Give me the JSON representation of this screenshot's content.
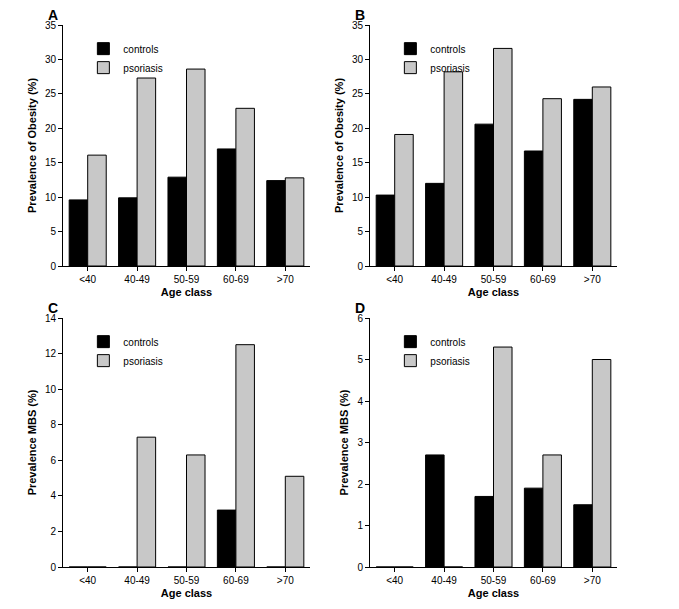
{
  "chart_data": [
    {
      "type": "bar",
      "title": "A",
      "x_label": "Age class",
      "y_label": "Prevalence of Obesity (%)",
      "categories": [
        "<40",
        "40-49",
        "50-59",
        "60-69",
        ">70"
      ],
      "series": [
        {
          "name": "controls",
          "color": "#000000",
          "values": [
            9.6,
            9.9,
            12.9,
            17.0,
            12.4
          ]
        },
        {
          "name": "psoriasis",
          "color": "#c8c8c8",
          "values": [
            16.1,
            27.3,
            28.6,
            22.9,
            12.8
          ]
        }
      ],
      "ylim": [
        0,
        35
      ],
      "yticks": [
        0,
        5,
        10,
        15,
        20,
        25,
        30,
        35
      ],
      "grid": false,
      "legend": "upper left"
    },
    {
      "type": "bar",
      "title": "B",
      "x_label": "Age class",
      "y_label": "Prevalence of Obesity (%)",
      "categories": [
        "<40",
        "40-49",
        "50-59",
        "60-69",
        ">70"
      ],
      "series": [
        {
          "name": "controls",
          "color": "#000000",
          "values": [
            10.3,
            12.0,
            20.6,
            16.7,
            24.2
          ]
        },
        {
          "name": "psoriasis",
          "color": "#c8c8c8",
          "values": [
            19.1,
            28.2,
            31.6,
            24.3,
            26.0
          ]
        }
      ],
      "ylim": [
        0,
        35
      ],
      "yticks": [
        0,
        5,
        10,
        15,
        20,
        25,
        30,
        35
      ],
      "grid": false,
      "legend": "upper left"
    },
    {
      "type": "bar",
      "title": "C",
      "x_label": "Age class",
      "y_label": "Prevalence MBS (%)",
      "categories": [
        "<40",
        "40-49",
        "50-59",
        "60-69",
        ">70"
      ],
      "series": [
        {
          "name": "controls",
          "color": "#000000",
          "values": [
            0,
            0,
            0,
            3.2,
            0
          ]
        },
        {
          "name": "psoriasis",
          "color": "#c8c8c8",
          "values": [
            0,
            7.3,
            6.3,
            12.5,
            5.1
          ]
        }
      ],
      "ylim": [
        0,
        14
      ],
      "yticks": [
        0,
        2,
        4,
        6,
        8,
        10,
        12,
        14
      ],
      "grid": false,
      "legend": "upper left"
    },
    {
      "type": "bar",
      "title": "D",
      "x_label": "Age class",
      "y_label": "Prevalence MBS (%)",
      "categories": [
        "<40",
        "40-49",
        "50-59",
        "60-69",
        ">70"
      ],
      "series": [
        {
          "name": "controls",
          "color": "#000000",
          "values": [
            0,
            2.7,
            1.7,
            1.9,
            1.5
          ]
        },
        {
          "name": "psoriasis",
          "color": "#c8c8c8",
          "values": [
            0,
            0,
            5.3,
            2.7,
            5.0
          ]
        }
      ],
      "ylim": [
        0,
        6
      ],
      "yticks": [
        0,
        1,
        2,
        3,
        4,
        5,
        6
      ],
      "grid": false,
      "legend": "upper left"
    }
  ]
}
